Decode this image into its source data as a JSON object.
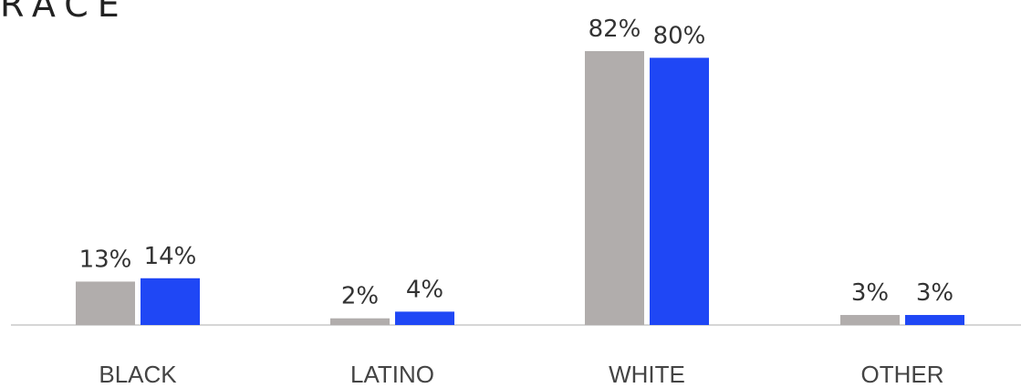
{
  "chart_data": {
    "type": "bar",
    "title": "RACE",
    "categories": [
      "BLACK",
      "LATINO",
      "WHITE",
      "OTHER"
    ],
    "series": [
      {
        "values": [
          13,
          2,
          82,
          3
        ],
        "labels": [
          "13%",
          "2%",
          "82%",
          "3%"
        ],
        "color": "#b1adac"
      },
      {
        "values": [
          14,
          4,
          80,
          3
        ],
        "labels": [
          "14%",
          "4%",
          "80%",
          "3%"
        ],
        "color": "#1f47f5"
      }
    ],
    "ylim": [
      0,
      82
    ],
    "grid": false,
    "baseline_color": "#d6d6d6"
  }
}
